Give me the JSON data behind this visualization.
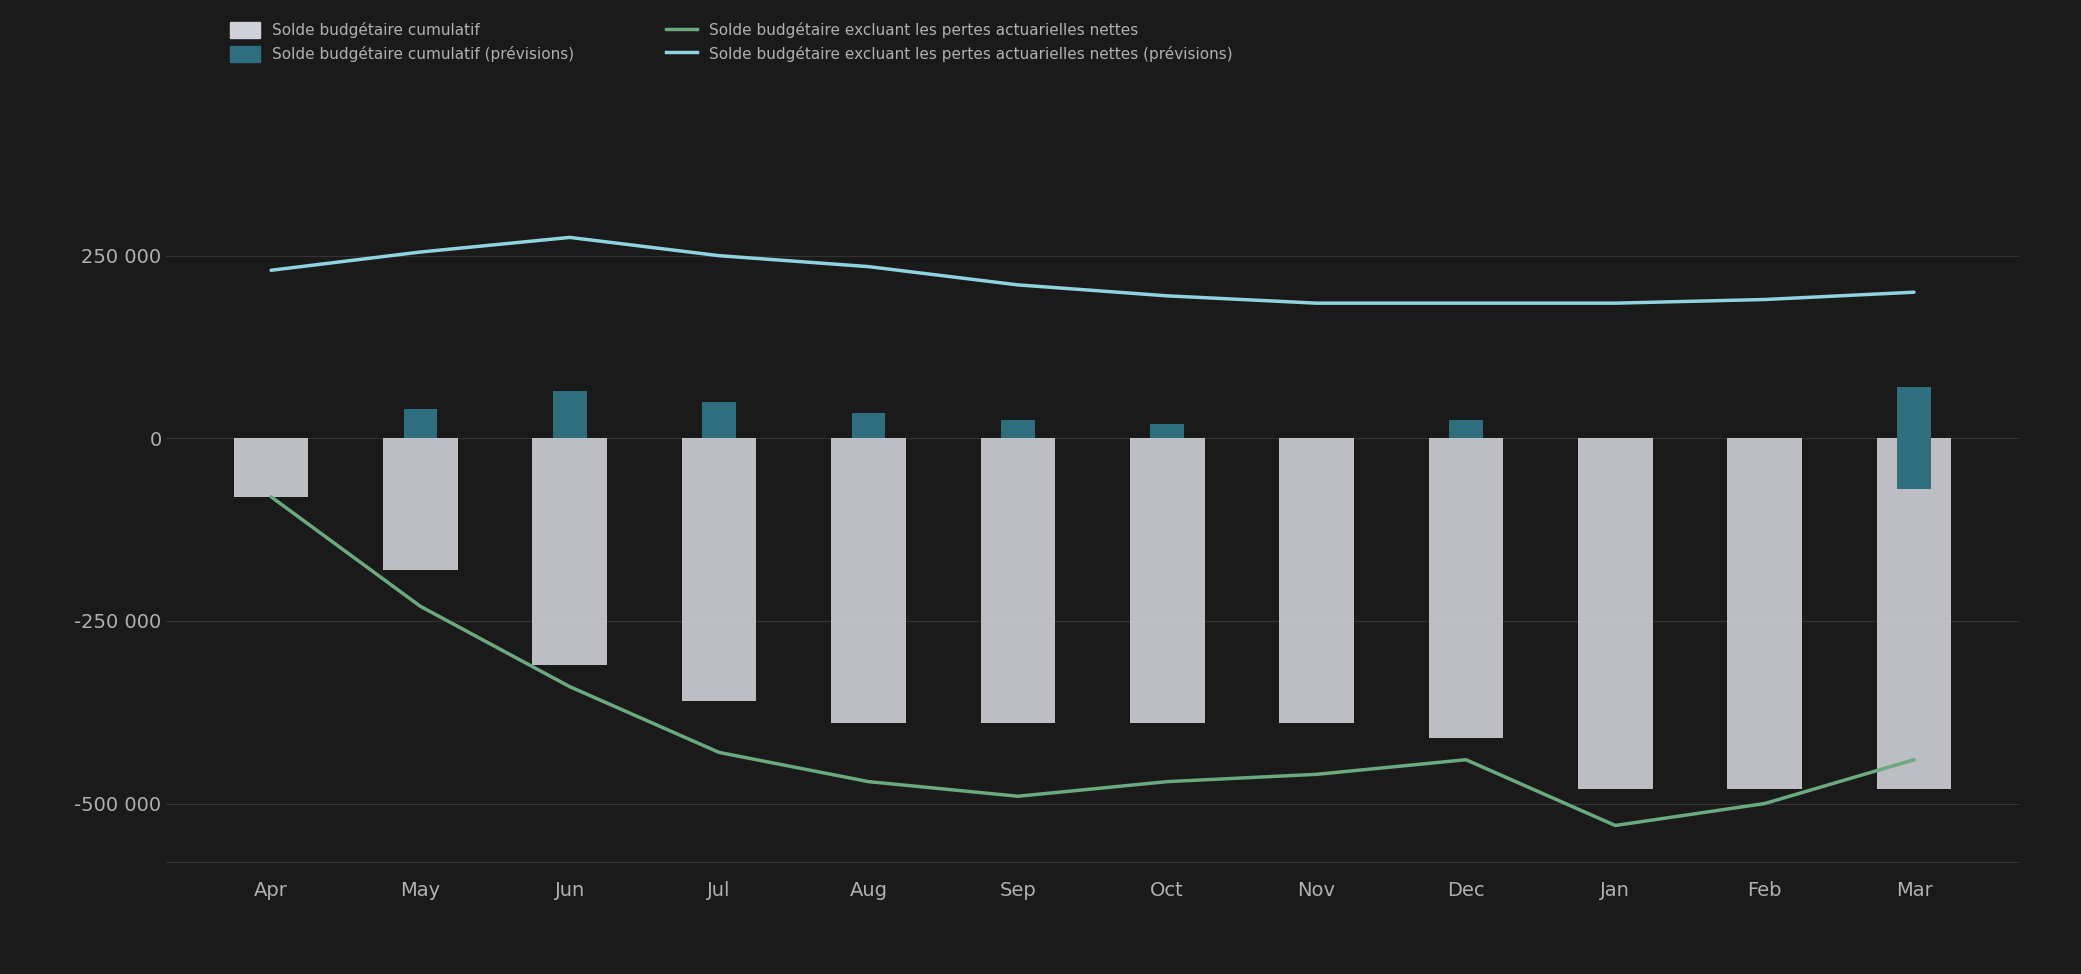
{
  "categories": [
    "Apr",
    "May",
    "Jun",
    "Jul",
    "Aug",
    "Sep",
    "Oct",
    "Nov",
    "Dec",
    "Jan",
    "Feb",
    "Mar"
  ],
  "bar_values": [
    -80000,
    -180000,
    -310000,
    -360000,
    -390000,
    -390000,
    -390000,
    -390000,
    -410000,
    -480000,
    -480000,
    -480000
  ],
  "green_line": [
    -80000,
    -230000,
    -340000,
    -430000,
    -470000,
    -490000,
    -470000,
    -460000,
    -440000,
    -530000,
    -500000,
    -440000
  ],
  "teal_line": [
    230000,
    255000,
    275000,
    250000,
    235000,
    210000,
    195000,
    185000,
    185000,
    185000,
    190000,
    200000
  ],
  "teal_bar_values": [
    0,
    40000,
    65000,
    50000,
    35000,
    25000,
    20000,
    0,
    25000,
    0,
    0,
    70000
  ],
  "teal_bar_neg": [
    0,
    0,
    0,
    0,
    0,
    0,
    0,
    0,
    0,
    0,
    0,
    -70000
  ],
  "ylim": [
    -600000,
    400000
  ],
  "ytick_values": [
    250000,
    0,
    -250000,
    -500000
  ],
  "ytick_labels": [
    "250 000",
    "0",
    "-250 000",
    "-500 000"
  ],
  "bar_color": "#d0d0d8",
  "teal_bar_color": "#2e6e7e",
  "green_line_color": "#6aaa7e",
  "teal_line_color": "#8fd4e0",
  "background_color": "#1a1a1a",
  "text_color": "#b0b0b0",
  "grid_color": "#333333",
  "legend_labels": [
    "Solde budgétaire cumulatif",
    "Solde budgétaire excluant les pertes actuarielles nettes",
    "Solde budgétaire cumulatif (prévisions)",
    "Solde budgétaire excluant les pertes actuarielles nettes (prévisions)"
  ]
}
